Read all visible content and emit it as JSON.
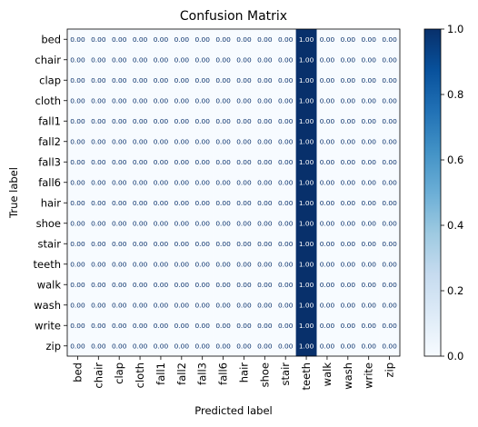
{
  "chart_data": {
    "type": "heatmap",
    "title": "Confusion Matrix",
    "xlabel": "Predicted label",
    "ylabel": "True label",
    "row_labels": [
      "bed",
      "chair",
      "clap",
      "cloth",
      "fall1",
      "fall2",
      "fall3",
      "fall6",
      "hair",
      "shoe",
      "stair",
      "teeth",
      "walk",
      "wash",
      "write",
      "zip"
    ],
    "col_labels": [
      "bed",
      "chair",
      "clap",
      "cloth",
      "fall1",
      "fall2",
      "fall3",
      "fall6",
      "hair",
      "shoe",
      "stair",
      "teeth",
      "walk",
      "wash",
      "write",
      "zip"
    ],
    "values": [
      [
        0,
        0,
        0,
        0,
        0,
        0,
        0,
        0,
        0,
        0,
        0,
        1,
        0,
        0,
        0,
        0
      ],
      [
        0,
        0,
        0,
        0,
        0,
        0,
        0,
        0,
        0,
        0,
        0,
        1,
        0,
        0,
        0,
        0
      ],
      [
        0,
        0,
        0,
        0,
        0,
        0,
        0,
        0,
        0,
        0,
        0,
        1,
        0,
        0,
        0,
        0
      ],
      [
        0,
        0,
        0,
        0,
        0,
        0,
        0,
        0,
        0,
        0,
        0,
        1,
        0,
        0,
        0,
        0
      ],
      [
        0,
        0,
        0,
        0,
        0,
        0,
        0,
        0,
        0,
        0,
        0,
        1,
        0,
        0,
        0,
        0
      ],
      [
        0,
        0,
        0,
        0,
        0,
        0,
        0,
        0,
        0,
        0,
        0,
        1,
        0,
        0,
        0,
        0
      ],
      [
        0,
        0,
        0,
        0,
        0,
        0,
        0,
        0,
        0,
        0,
        0,
        1,
        0,
        0,
        0,
        0
      ],
      [
        0,
        0,
        0,
        0,
        0,
        0,
        0,
        0,
        0,
        0,
        0,
        1,
        0,
        0,
        0,
        0
      ],
      [
        0,
        0,
        0,
        0,
        0,
        0,
        0,
        0,
        0,
        0,
        0,
        1,
        0,
        0,
        0,
        0
      ],
      [
        0,
        0,
        0,
        0,
        0,
        0,
        0,
        0,
        0,
        0,
        0,
        1,
        0,
        0,
        0,
        0
      ],
      [
        0,
        0,
        0,
        0,
        0,
        0,
        0,
        0,
        0,
        0,
        0,
        1,
        0,
        0,
        0,
        0
      ],
      [
        0,
        0,
        0,
        0,
        0,
        0,
        0,
        0,
        0,
        0,
        0,
        1,
        0,
        0,
        0,
        0
      ],
      [
        0,
        0,
        0,
        0,
        0,
        0,
        0,
        0,
        0,
        0,
        0,
        1,
        0,
        0,
        0,
        0
      ],
      [
        0,
        0,
        0,
        0,
        0,
        0,
        0,
        0,
        0,
        0,
        0,
        1,
        0,
        0,
        0,
        0
      ],
      [
        0,
        0,
        0,
        0,
        0,
        0,
        0,
        0,
        0,
        0,
        0,
        1,
        0,
        0,
        0,
        0
      ],
      [
        0,
        0,
        0,
        0,
        0,
        0,
        0,
        0,
        0,
        0,
        0,
        1,
        0,
        0,
        0,
        0
      ]
    ],
    "value_format": "0.00",
    "colormap": "Blues",
    "colormap_low": "#f7fbff",
    "colormap_high": "#08306b",
    "colorbar": {
      "range": [
        0.0,
        1.0
      ],
      "ticks": [
        "0.0",
        "0.2",
        "0.4",
        "0.6",
        "0.8",
        "1.0"
      ]
    }
  }
}
